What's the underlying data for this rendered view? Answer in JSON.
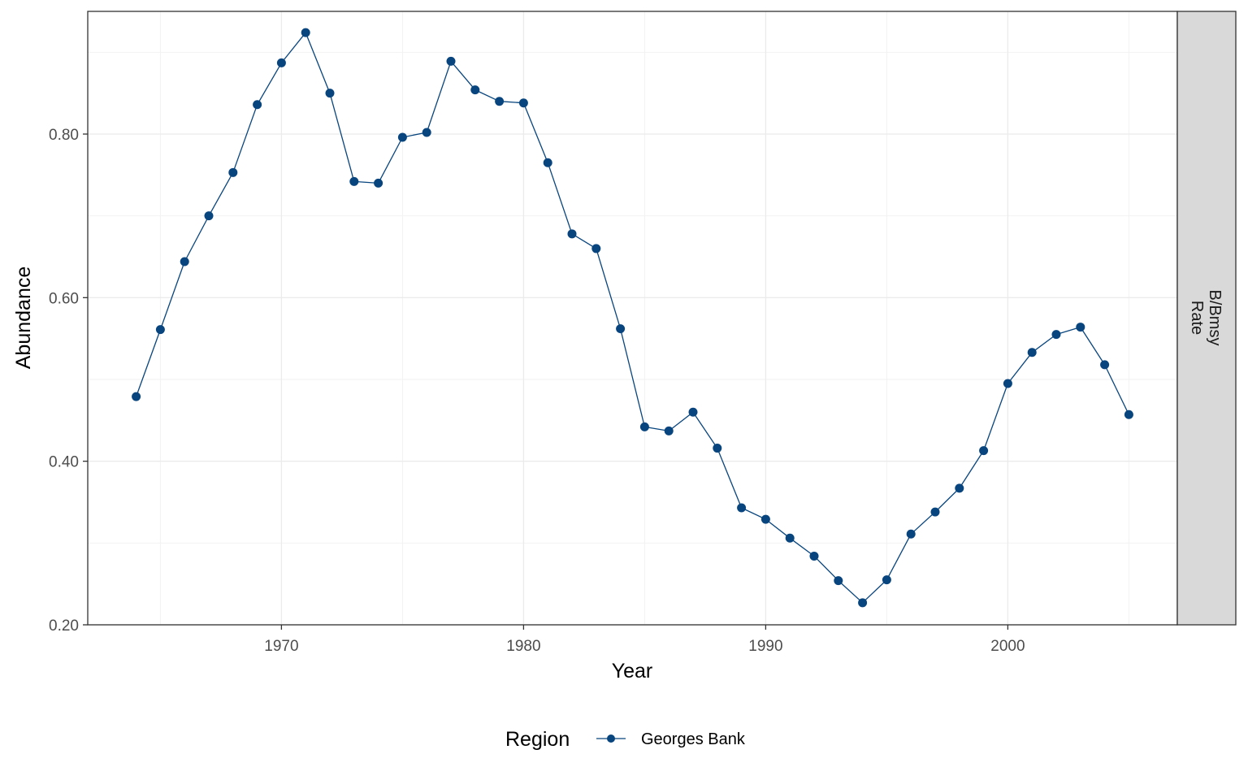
{
  "chart_data": {
    "type": "line",
    "xlabel": "Year",
    "ylabel": "Abundance",
    "facet_label": [
      "B/Bmsy",
      "Rate"
    ],
    "legend": {
      "title": "Region",
      "position": "bottom",
      "entries": [
        "Georges Bank"
      ]
    },
    "xlim": [
      1962,
      2007
    ],
    "ylim": [
      0.2,
      0.95
    ],
    "x_ticks": [
      "1970",
      "1980",
      "1990",
      "2000"
    ],
    "y_ticks": [
      "0.20",
      "0.40",
      "0.60",
      "0.80"
    ],
    "grid": true,
    "series_color": "#08457E",
    "series": [
      {
        "name": "Georges Bank",
        "x": [
          1964,
          1965,
          1966,
          1967,
          1968,
          1969,
          1970,
          1971,
          1972,
          1973,
          1974,
          1975,
          1976,
          1977,
          1978,
          1979,
          1980,
          1981,
          1982,
          1983,
          1984,
          1985,
          1986,
          1987,
          1988,
          1989,
          1990,
          1991,
          1992,
          1993,
          1994,
          1995,
          1996,
          1997,
          1998,
          1999,
          2000,
          2001,
          2002,
          2003,
          2004,
          2005
        ],
        "values": [
          0.479,
          0.561,
          0.644,
          0.7,
          0.753,
          0.836,
          0.887,
          0.924,
          0.85,
          0.742,
          0.74,
          0.796,
          0.802,
          0.889,
          0.854,
          0.84,
          0.838,
          0.765,
          0.678,
          0.66,
          0.562,
          0.442,
          0.437,
          0.46,
          0.416,
          0.343,
          0.329,
          0.306,
          0.284,
          0.254,
          0.227,
          0.255,
          0.311,
          0.338,
          0.367,
          0.413,
          0.495,
          0.533,
          0.555,
          0.564,
          0.518,
          0.457
        ]
      }
    ]
  }
}
